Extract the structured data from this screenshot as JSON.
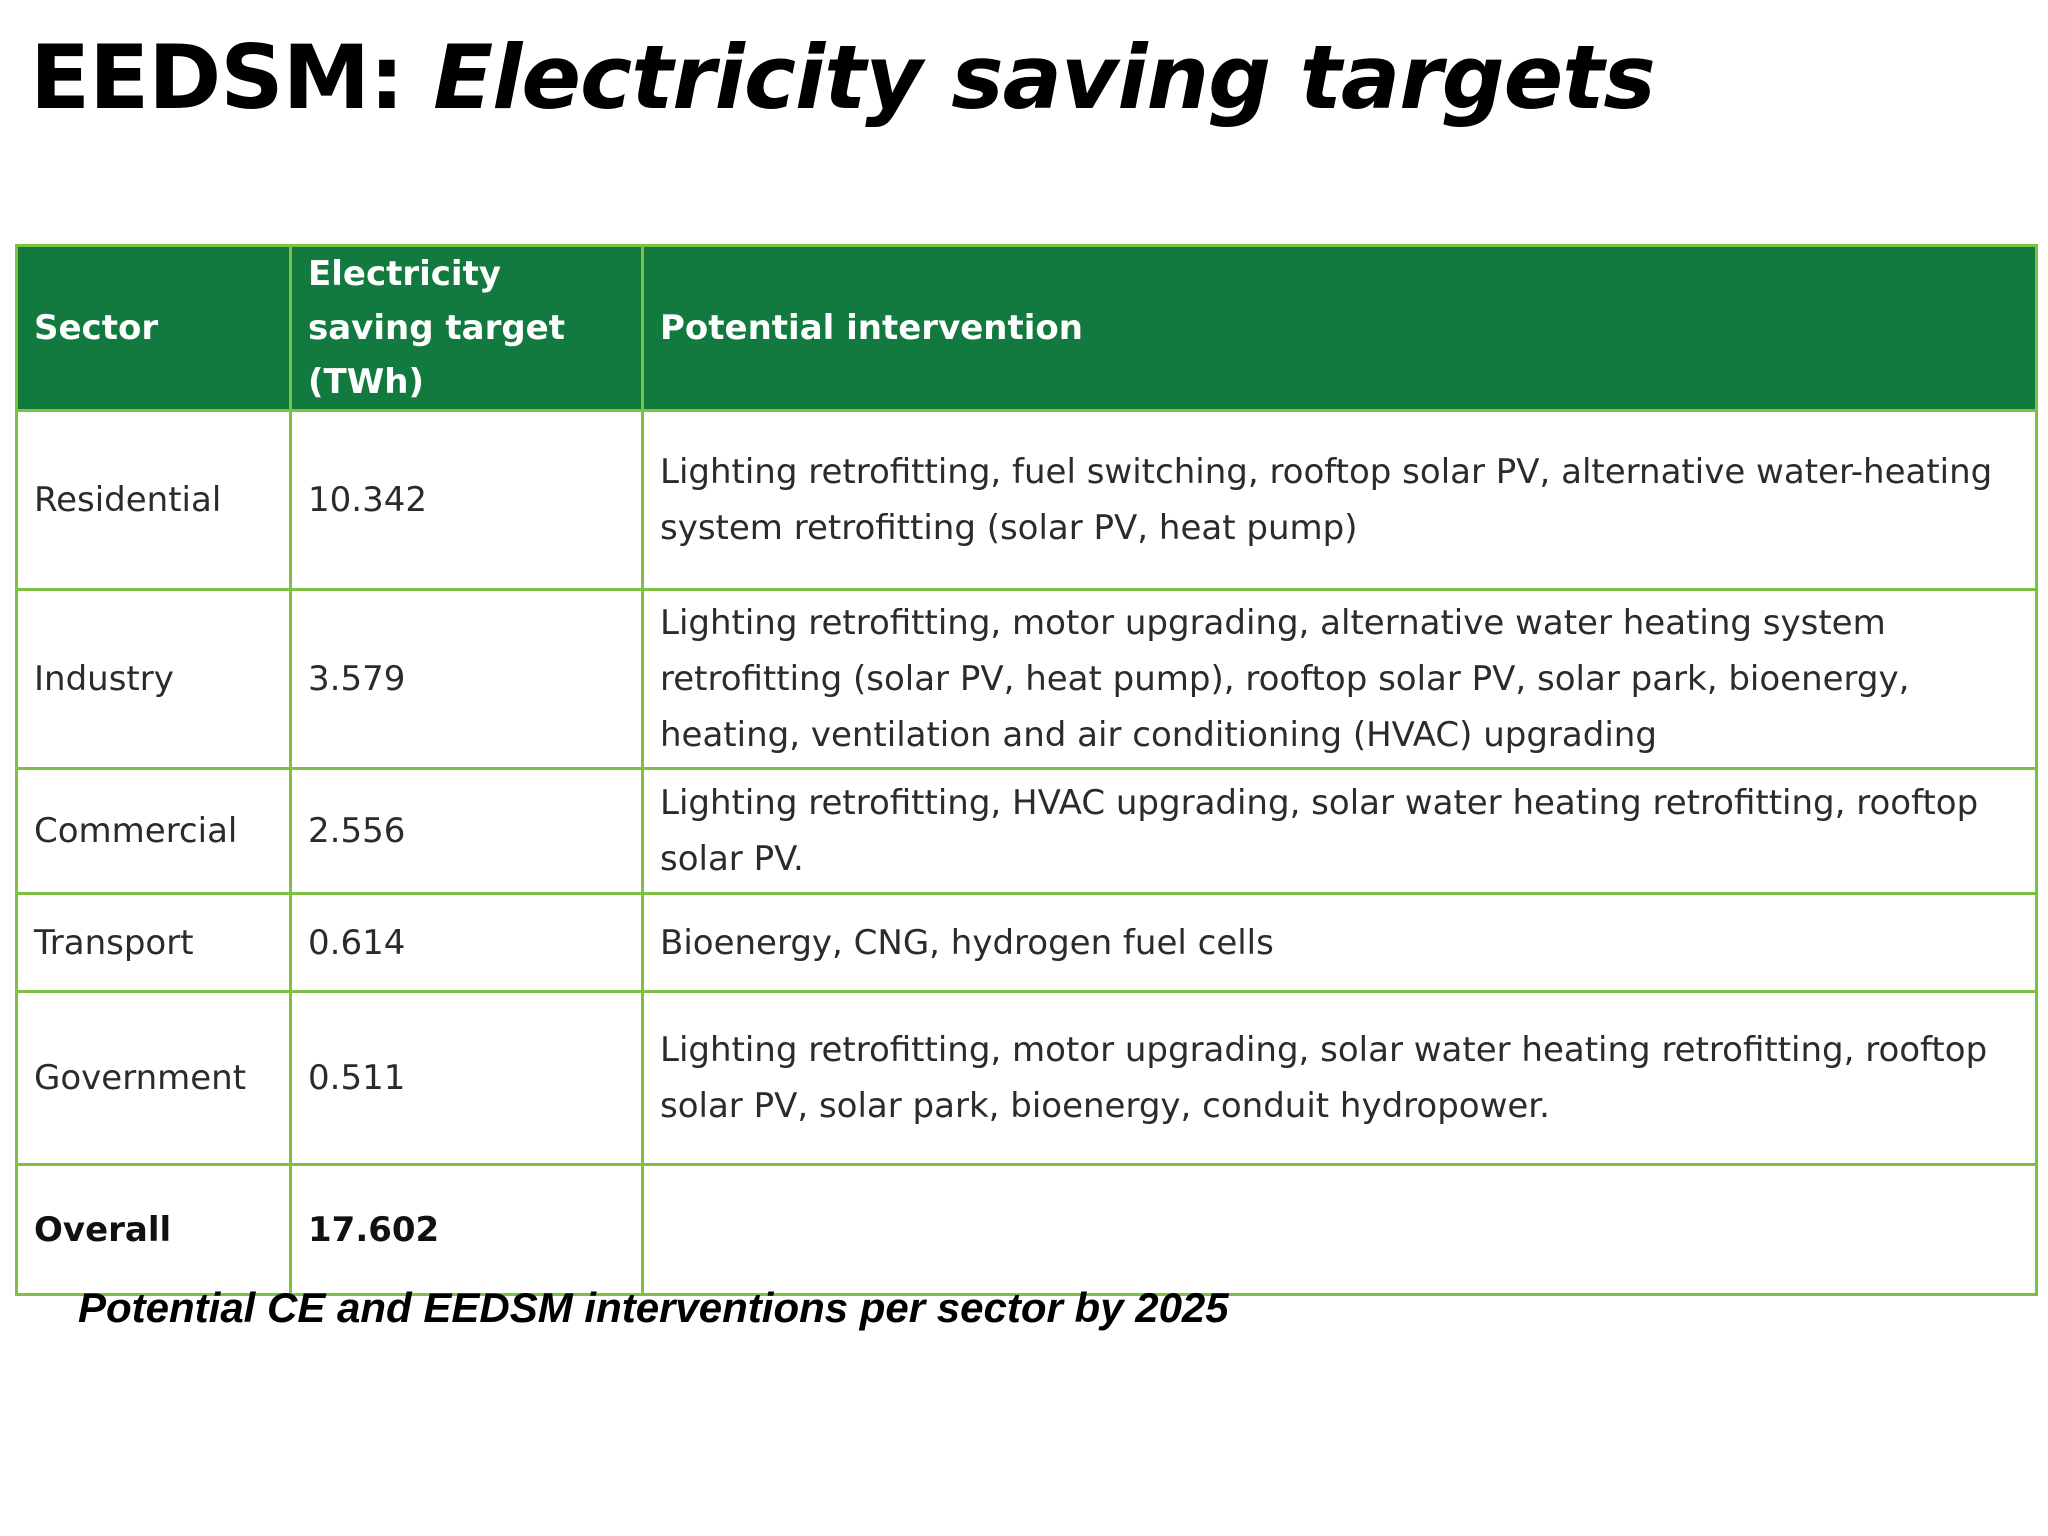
{
  "title": {
    "prefix": "EEDSM: ",
    "italic": "Electricity saving targets"
  },
  "table": {
    "headers": {
      "sector": "Sector",
      "target": "Electricity saving target (TWh)",
      "intervention": "Potential intervention"
    },
    "rows": [
      {
        "sector": "Residential",
        "target": "10.342",
        "intervention": "Lighting retrofitting, fuel switching, rooftop solar PV, alternative water-heating system retrofitting (solar PV, heat pump)"
      },
      {
        "sector": "Industry",
        "target": "3.579",
        "intervention": "Lighting retrofitting, motor upgrading, alternative water heating system retrofitting (solar PV, heat pump), rooftop solar PV, solar park, bioenergy, heating, ventilation and air conditioning (HVAC) upgrading"
      },
      {
        "sector": "Commercial",
        "target": "2.556",
        "intervention": "Lighting retrofitting, HVAC upgrading, solar water heating retrofitting, rooftop solar PV."
      },
      {
        "sector": "Transport",
        "target": "0.614",
        "intervention": "Bioenergy, CNG, hydrogen fuel cells"
      },
      {
        "sector": "Government",
        "target": "0.511",
        "intervention": "Lighting retrofitting, motor upgrading, solar water heating retrofitting, rooftop solar PV, solar park, bioenergy, conduit hydropower."
      }
    ],
    "overall": {
      "sector": "Overall",
      "target": "17.602",
      "intervention": ""
    }
  },
  "caption": "Potential CE and EEDSM interventions per sector by 2025",
  "colors": {
    "header_background": "#127a3e",
    "border": "#7dc142",
    "header_text": "#ffffff"
  }
}
